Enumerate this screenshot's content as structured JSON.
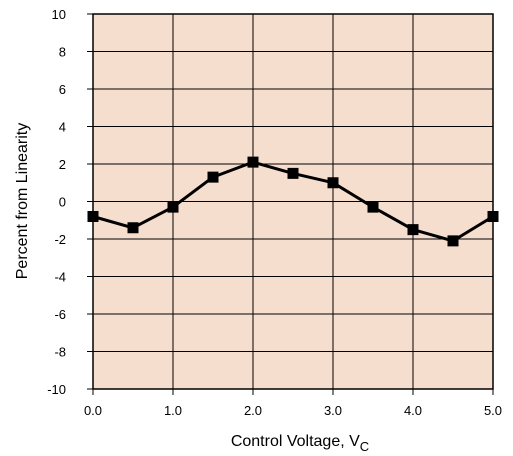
{
  "chart_data": {
    "type": "line",
    "title": "",
    "xlabel": "Control Voltage, V",
    "xlabel_subscript": "C",
    "ylabel": "Percent from Linearity",
    "xlim": [
      0,
      5
    ],
    "ylim": [
      -10,
      10
    ],
    "x_ticks": [
      "0.0",
      "1.0",
      "2.0",
      "3.0",
      "4.0",
      "5.0"
    ],
    "y_ticks": [
      "10",
      "8",
      "6",
      "4",
      "2",
      "0",
      "-2",
      "-4",
      "-6",
      "-8",
      "-10"
    ],
    "grid": true,
    "plot_background": "#f6dece",
    "series": [
      {
        "color": "#000000",
        "marker": "square",
        "x": [
          0.0,
          0.5,
          1.0,
          1.5,
          2.0,
          2.5,
          3.0,
          3.5,
          4.0,
          4.5,
          5.0
        ],
        "y": [
          -0.8,
          -1.4,
          -0.3,
          1.3,
          2.1,
          1.5,
          1.0,
          -0.3,
          -1.5,
          -2.1,
          -0.8
        ]
      }
    ]
  }
}
